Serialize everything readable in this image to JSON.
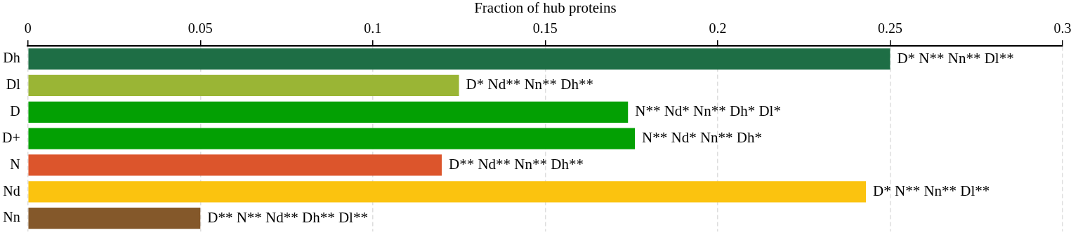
{
  "chart_data": {
    "type": "bar",
    "orientation": "horizontal",
    "xlabel": "Fraction of hub proteins",
    "categories": [
      "Dh",
      "Dl",
      "D",
      "D+",
      "N",
      "Nd",
      "Nn"
    ],
    "values": [
      0.25,
      0.125,
      0.174,
      0.176,
      0.12,
      0.243,
      0.05
    ],
    "colors": [
      "#1e6e45",
      "#9ab535",
      "#03a003",
      "#03a003",
      "#dc552c",
      "#fbc30f",
      "#84582a"
    ],
    "xlim": [
      0,
      0.3
    ],
    "xticks": [
      0,
      0.05,
      0.1,
      0.15,
      0.2,
      0.25,
      0.3
    ],
    "grid": "x",
    "legend": false,
    "annotations": [
      {
        "text": "D* N** Nn** Dl**",
        "x": 0.25,
        "y": "Dh"
      },
      {
        "text": "D* Nd** Nn** Dh**",
        "x": 0.125,
        "y": "Dl"
      },
      {
        "text": "N** Nd* Nn** Dh* Dl*",
        "x": 0.174,
        "y": "D"
      },
      {
        "text": "N** Nd* Nn** Dh*",
        "x": 0.176,
        "y": "D+"
      },
      {
        "text": "D** Nd** Nn** Dh**",
        "x": 0.12,
        "y": "N"
      },
      {
        "text": "D* N** Nn** Dl**",
        "x": 0.243,
        "y": "Nd"
      },
      {
        "text": "D** N** Nd** Dh** Dl**",
        "x": 0.05,
        "y": "Nn"
      }
    ]
  }
}
